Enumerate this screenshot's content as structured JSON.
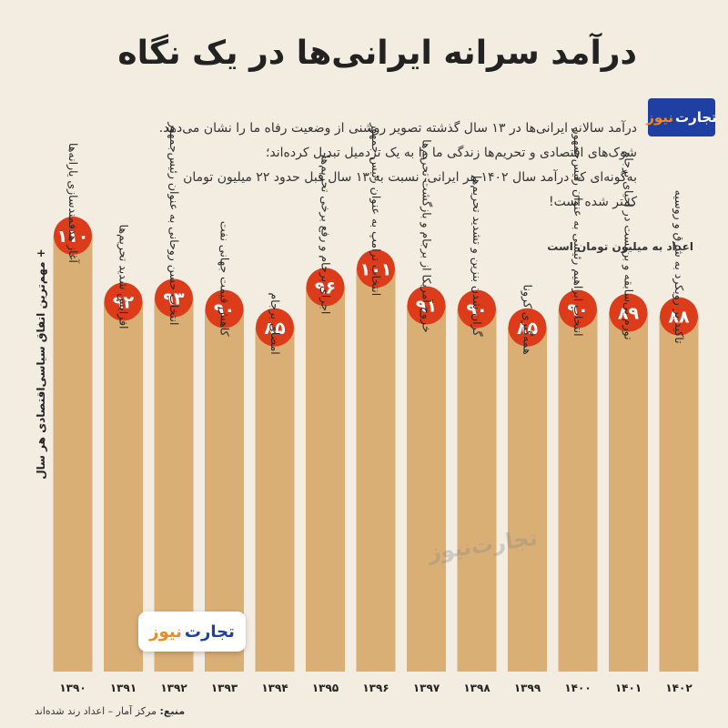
{
  "header": {
    "title": "درآمد سرانه ایرانی‌ها در یک نگاه",
    "logo_part1": "تجارت",
    "logo_part2": "نیوز"
  },
  "intro": {
    "line1": "درآمد سالانه ایرانی‌ها در ۱۳ سال گذشته تصویر روشنی از وضعیت رفاه ما را نشان می‌دهد.",
    "line2": "شوک‌های اقتصادی و تحریم‌ها زندگی ما را به یک  تردمیل تبدیل کرده‌اند؛",
    "line3": "به‌گونه‌ای که درآمد سال ۱۴۰۲ هر ایرانی، نسبت به ۱۳ سال قبل حدود ۲۲ میلیون تومان",
    "line4": "کمتر شده است!"
  },
  "unit_note": "اعداد به میلیون تومان است",
  "legend_label": "+ مهم‌ترین اتفاق سیاسی‌اقتصادی هر سال",
  "watermark": "تجارت‌نیوز",
  "badge": {
    "part1": "تجارت",
    "part2": "نیوز"
  },
  "source": {
    "label": "منبع:",
    "text": "مرکز آمار – اعداد رند شده‌اند"
  },
  "colors": {
    "background": "#f3ece1",
    "bar": "#d6a86a",
    "circle": "#dc3c1a",
    "brand_blue": "#1f3fa3",
    "brand_orange": "#f08a1f"
  },
  "chart_data": {
    "type": "bar",
    "title": "درآمد سرانه ایرانی‌ها در یک نگاه",
    "ylabel": "اعداد به میلیون تومان است",
    "categories": [
      "۱۳۹۰",
      "۱۳۹۱",
      "۱۳۹۲",
      "۱۳۹۳",
      "۱۳۹۴",
      "۱۳۹۵",
      "۱۳۹۶",
      "۱۳۹۷",
      "۱۳۹۸",
      "۱۳۹۹",
      "۱۴۰۰",
      "۱۴۰۱",
      "۱۴۰۲"
    ],
    "values": [
      110,
      92,
      93,
      90,
      85,
      96,
      101,
      91,
      90,
      85,
      90,
      89,
      88
    ],
    "value_labels": [
      "۱۱۰",
      "۹۲",
      "۹۳",
      "۹۰",
      "۸۵",
      "۹۶",
      "۱۰۱",
      "۹۱",
      "۹۰",
      "۸۵",
      "۹۰",
      "۸۹",
      "۸۸"
    ],
    "annotations": [
      "آغاز هدفمندسازی یارانه‌ها",
      "افزایش شدید تحریم‌ها",
      "انتخاب حسن روحانی به عنوان رئیس‌جمهور",
      "کاهش قیمت جهانی نفت",
      "امضای برجام",
      "اجرای برجام و رفع برخی تحریم‌ها",
      "انتخاب ترامپ به عنوان رئیس جمهور",
      "خروج آمریکا از برجام و بازگشت تحریم‌ها",
      "گران شدن بنزین و تشدید تحریم‌ها",
      "همه‌گیری کرونا",
      "انتخاب ابراهیم رئیسی به عنوان رئیس‌جمهور",
      "تورم بی‌سابقه و بن‌بست در احیای برجام",
      "تاکید بر رویکرد به شرق و روسیه"
    ]
  }
}
